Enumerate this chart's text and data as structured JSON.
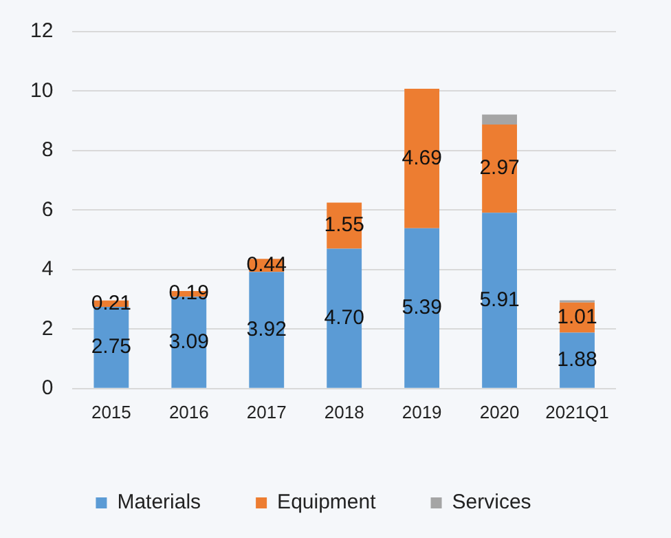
{
  "chart_data": {
    "type": "bar",
    "stacked": true,
    "categories": [
      "2015",
      "2016",
      "2017",
      "2018",
      "2019",
      "2020",
      "2021Q1"
    ],
    "series": [
      {
        "name": "Materials",
        "color": "#5b9bd5",
        "values": [
          2.75,
          3.09,
          3.92,
          4.7,
          5.39,
          5.91,
          1.88
        ],
        "value_labels": [
          "2.75",
          "3.09",
          "3.92",
          "4.70",
          "5.39",
          "5.91",
          "1.88"
        ]
      },
      {
        "name": "Equipment",
        "color": "#ed7d31",
        "values": [
          0.21,
          0.19,
          0.44,
          1.55,
          4.69,
          2.97,
          1.01
        ],
        "value_labels": [
          "0.21",
          "0.19",
          "0.44",
          "1.55",
          "4.69",
          "2.97",
          "1.01"
        ]
      },
      {
        "name": "Services",
        "color": "#a5a5a5",
        "values": [
          null,
          null,
          null,
          null,
          null,
          0.33,
          0.08
        ]
      }
    ],
    "ylim": [
      0,
      12
    ],
    "yticks": [
      0,
      2,
      4,
      6,
      8,
      10,
      12
    ],
    "grid": "y",
    "legend": "bottom"
  }
}
